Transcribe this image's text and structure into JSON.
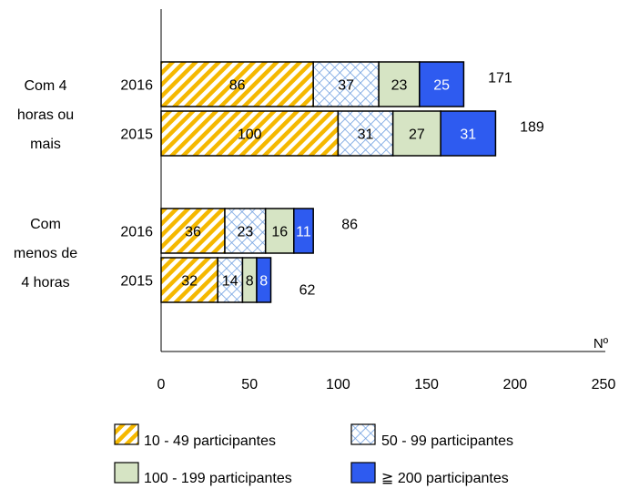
{
  "chart_data": {
    "type": "bar",
    "orientation": "horizontal",
    "stacked": true,
    "x_unit_label": "Nº",
    "xlim": [
      0,
      250
    ],
    "xticks": [
      0,
      50,
      100,
      150,
      200,
      250
    ],
    "grid": false,
    "legend_position": "bottom",
    "groups": [
      {
        "label_lines": [
          "Com 4",
          "horas ou",
          "mais"
        ],
        "bars": [
          {
            "year": "2016",
            "segments": [
              86,
              37,
              23,
              25
            ],
            "total": 171
          },
          {
            "year": "2015",
            "segments": [
              100,
              31,
              27,
              31
            ],
            "total": 189
          }
        ]
      },
      {
        "label_lines": [
          "Com",
          "menos de",
          "4 horas"
        ],
        "bars": [
          {
            "year": "2016",
            "segments": [
              36,
              23,
              16,
              11
            ],
            "total": 86
          },
          {
            "year": "2015",
            "segments": [
              32,
              14,
              8,
              8
            ],
            "total": 62
          }
        ]
      }
    ],
    "series": [
      {
        "name": "10 - 49 participantes",
        "pattern": "diagonal-stripes",
        "color": "#F5B800"
      },
      {
        "name": "50 - 99 participantes",
        "pattern": "crosshatch",
        "color": "#6F9FE0"
      },
      {
        "name": "100 - 199 participantes",
        "pattern": "solid",
        "color": "#D6E4C4"
      },
      {
        "name": "≧ 200 participantes",
        "pattern": "solid",
        "color": "#2E5BF0"
      }
    ]
  }
}
